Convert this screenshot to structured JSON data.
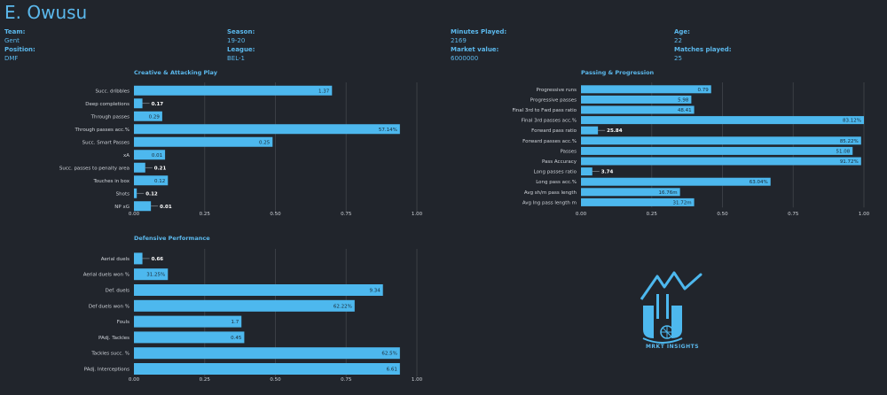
{
  "player": {
    "name": "E. Owusu"
  },
  "info": [
    {
      "label": "Team:",
      "value": "Gent"
    },
    {
      "label": "Position:",
      "value": "DMF"
    },
    {
      "label": "Season:",
      "value": "19-20"
    },
    {
      "label": "League:",
      "value": "BEL-1"
    },
    {
      "label": "Minutes Played:",
      "value": "2169"
    },
    {
      "label": "Market value:",
      "value": "6000000"
    },
    {
      "label": "Age:",
      "value": "22"
    },
    {
      "label": "Matches played:",
      "value": "25"
    }
  ],
  "colors": {
    "bar": "#4db8ee",
    "background": "#21252c",
    "text": "#5bb8ec",
    "label": "#d0d4da",
    "grid": "#3a3e45"
  },
  "logo": {
    "icon": "mrkt-insights-logo-icon",
    "text": "MRKT INSIGHTS"
  },
  "chart_data": [
    {
      "type": "bar",
      "orientation": "horizontal",
      "title": "Creative & Attacking Play",
      "xlim": [
        0,
        1
      ],
      "xticks": [
        "0.00",
        "0.25",
        "0.50",
        "0.75",
        "1.00"
      ],
      "categories": [
        "Succ. dribbles",
        "Deep completions",
        "Through passes",
        "Through passes acc.%",
        "Succ. Smart Passes",
        "xA",
        "Succ. passes to penalty area",
        "Touches in box",
        "Shots",
        "NP xG"
      ],
      "values": [
        0.7,
        0.03,
        0.1,
        0.94,
        0.49,
        0.11,
        0.04,
        0.12,
        0.01,
        0.06
      ],
      "labels": [
        "1.37",
        "0.17",
        "0.29",
        "57.14%",
        "0.25",
        "0.01",
        "0.21",
        "0.12",
        "0.12",
        "0.01"
      ],
      "grid": true
    },
    {
      "type": "bar",
      "orientation": "horizontal",
      "title": "Passing & Progression",
      "xlim": [
        0,
        1
      ],
      "xticks": [
        "0.00",
        "0.25",
        "0.50",
        "0.75",
        "1.00"
      ],
      "categories": [
        "Progressive runs",
        "Progressive passes",
        "Final 3rd to Fwd pass ratio",
        "Final 3rd passes acc.%",
        "Forward pass ratio",
        "Forward passes acc.%",
        "Passes",
        "Pass Accuracy",
        "Long passes ratio",
        "Long pass acc.%",
        "Avg sh/m pass length",
        "Avg lng pass length m"
      ],
      "values": [
        0.46,
        0.39,
        0.4,
        1.0,
        0.06,
        0.99,
        0.96,
        0.99,
        0.04,
        0.67,
        0.35,
        0.4
      ],
      "labels": [
        "0.79",
        "5.98",
        "48.41",
        "83.12%",
        "25.84",
        "85.22%",
        "51.08",
        "91.72%",
        "3.74",
        "63.04%",
        "16.76m",
        "31.72m"
      ],
      "grid": true
    },
    {
      "type": "bar",
      "orientation": "horizontal",
      "title": "Defensive Performance",
      "xlim": [
        0,
        1
      ],
      "xticks": [
        "0.00",
        "0.25",
        "0.50",
        "0.75",
        "1.00"
      ],
      "categories": [
        "Aerial duels",
        "Aerial duels won %",
        "Def. duels",
        "Def duels won %",
        "Fouls",
        "PAdj. Tackles",
        "Tackles succ. %",
        "PAdj. Interceptions"
      ],
      "values": [
        0.03,
        0.12,
        0.88,
        0.78,
        0.38,
        0.39,
        0.94,
        0.94
      ],
      "labels": [
        "0.66",
        "31.25%",
        "9.34",
        "62.22%",
        "1.7",
        "0.45",
        "62.5%",
        "6.61"
      ],
      "grid": true
    }
  ]
}
